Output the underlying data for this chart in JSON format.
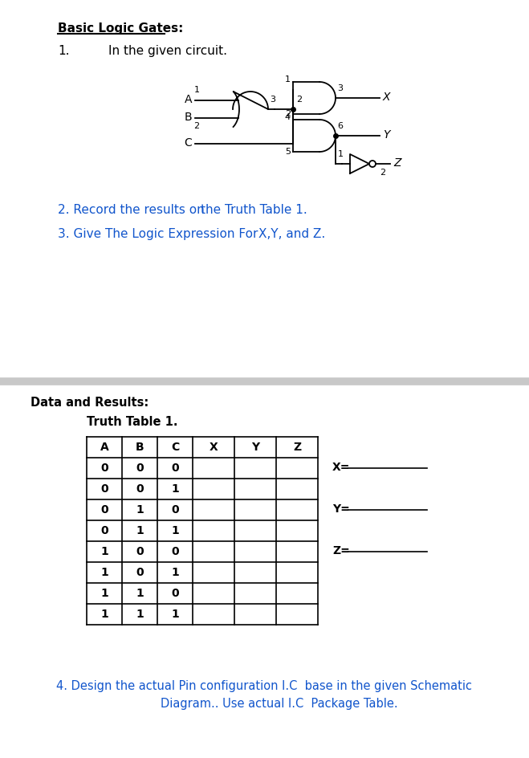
{
  "title": "Basic Logic Gates:",
  "section1_num": "1.",
  "section1_text": "In the given circuit.",
  "section2": "2. Record the results on the Truth Table 1.",
  "section3": "3. Give The Logic Expression For X,Y, and Z.",
  "data_results": "Data and Results:",
  "truth_table_title": "Truth Table 1.",
  "table_headers": [
    "A",
    "B",
    "C",
    "X",
    "Y",
    "Z"
  ],
  "table_data": [
    [
      "0",
      "0",
      "0",
      "",
      "",
      ""
    ],
    [
      "0",
      "0",
      "1",
      "",
      "",
      ""
    ],
    [
      "0",
      "1",
      "0",
      "",
      "",
      ""
    ],
    [
      "0",
      "1",
      "1",
      "",
      "",
      ""
    ],
    [
      "1",
      "0",
      "0",
      "",
      "",
      ""
    ],
    [
      "1",
      "0",
      "1",
      "",
      "",
      ""
    ],
    [
      "1",
      "1",
      "0",
      "",
      "",
      ""
    ],
    [
      "1",
      "1",
      "1",
      "",
      "",
      ""
    ]
  ],
  "expr_x": "X=",
  "expr_y": "Y=",
  "expr_z": "Z=",
  "section4_line1": "4. Design the actual Pin configuration I.C  base in the given Schematic",
  "section4_line2": "Diagram.. Use actual I.C  Package Table.",
  "divider_color": "#c8c8c8",
  "text_color": "#000000",
  "blue_color": "#1155cc",
  "red_color": "#cc0000"
}
